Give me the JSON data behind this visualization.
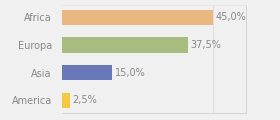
{
  "categories": [
    "America",
    "Asia",
    "Europa",
    "Africa"
  ],
  "values": [
    2.5,
    15.0,
    37.5,
    45.0
  ],
  "bar_colors": [
    "#f5c842",
    "#6878b8",
    "#a8bc80",
    "#e8b880"
  ],
  "labels": [
    "2,5%",
    "15,0%",
    "37,5%",
    "45,0%"
  ],
  "background_color": "#f0f0f0",
  "text_color": "#888888",
  "label_fontsize": 7,
  "tick_fontsize": 7,
  "xlim": 55,
  "bar_height": 0.55
}
